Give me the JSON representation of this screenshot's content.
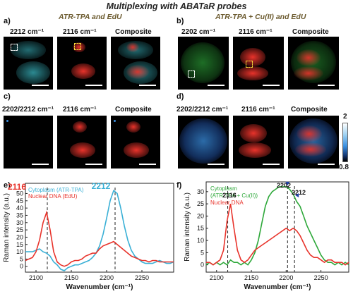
{
  "title": "Multiplexing with ABATaR probes",
  "panels": {
    "a": {
      "letter": "a)",
      "subtitle": "ATR-TPA and EdU",
      "labels": [
        "2212 cm⁻¹",
        "2116 cm⁻¹",
        "Composite"
      ]
    },
    "b": {
      "letter": "b)",
      "subtitle": "ATR-TPA + Cu(II) and EdU",
      "labels": [
        "2202 cm⁻¹",
        "2116 cm⁻¹",
        "Composite"
      ]
    },
    "c": {
      "letter": "c)",
      "labels": [
        "2202/2212 cm⁻¹",
        "2116 cm⁻¹",
        "Composite"
      ]
    },
    "d": {
      "letter": "d)",
      "labels": [
        "2202/2212 cm⁻¹",
        "2116 cm⁻¹",
        "Composite"
      ]
    },
    "e": {
      "letter": "e)"
    },
    "f": {
      "letter": "f)"
    }
  },
  "colorbar": {
    "max": "2",
    "min": "0.8"
  },
  "colors": {
    "cyan": "#3ec4cf",
    "red": "#e8332b",
    "green": "#2ea83a",
    "blue": "#3a8fe0",
    "label_brown": "#6b5a2e"
  },
  "chart_data": [
    {
      "type": "line",
      "panel": "e",
      "xlabel": "Wavenumber (cm⁻¹)",
      "ylabel": "Raman intensity (a.u.)",
      "xlim": [
        2085,
        2295
      ],
      "ylim": [
        -4,
        57
      ],
      "xticks": [
        2100,
        2150,
        2200,
        2250
      ],
      "yticks": [
        0,
        5,
        10,
        15,
        20,
        25,
        30,
        35,
        40,
        45,
        50
      ],
      "legend_location": "top-left",
      "series": [
        {
          "name": "Cytoplasm (ATR-TPA)",
          "color": "#3ab0d6",
          "x": [
            2085,
            2095,
            2100,
            2105,
            2110,
            2115,
            2120,
            2125,
            2130,
            2135,
            2140,
            2145,
            2150,
            2155,
            2160,
            2165,
            2170,
            2175,
            2180,
            2185,
            2190,
            2195,
            2200,
            2205,
            2210,
            2215,
            2220,
            2225,
            2230,
            2235,
            2240,
            2245,
            2250,
            2255,
            2260,
            2265,
            2270,
            2275,
            2280,
            2285,
            2290,
            2295
          ],
          "y": [
            10,
            10,
            11,
            12,
            10,
            9,
            7,
            3,
            1,
            -2,
            -3,
            -1,
            0,
            1,
            1,
            2,
            3,
            4,
            6,
            9,
            14,
            22,
            33,
            45,
            52,
            50,
            40,
            28,
            18,
            11,
            7,
            5,
            3,
            2,
            2,
            2,
            3,
            4,
            3,
            2,
            2,
            3
          ]
        },
        {
          "name": "Nuclear DNA (EdU)",
          "color": "#e8332b",
          "x": [
            2085,
            2095,
            2100,
            2105,
            2110,
            2115,
            2120,
            2125,
            2130,
            2135,
            2140,
            2145,
            2150,
            2155,
            2160,
            2165,
            2170,
            2175,
            2180,
            2185,
            2190,
            2195,
            2200,
            2205,
            2210,
            2215,
            2220,
            2225,
            2230,
            2235,
            2240,
            2245,
            2250,
            2255,
            2260,
            2265,
            2270,
            2275,
            2280,
            2285,
            2290,
            2295
          ],
          "y": [
            4,
            6,
            10,
            18,
            30,
            37,
            25,
            10,
            3,
            1,
            0,
            1,
            3,
            4,
            4,
            5,
            7,
            8,
            9,
            9,
            12,
            14,
            15,
            16,
            17,
            15,
            13,
            11,
            9,
            7,
            6,
            5,
            4,
            4,
            3,
            4,
            4,
            3,
            3,
            3,
            3,
            3
          ]
        }
      ],
      "annotations": [
        {
          "text": "2212",
          "x": 2212
        },
        {
          "text": "2116",
          "x": 2116
        }
      ]
    },
    {
      "type": "line",
      "panel": "f",
      "xlabel": "Wavenumber (cm⁻¹)",
      "ylabel": "Raman intensity (a.u.)",
      "xlim": [
        2085,
        2290
      ],
      "ylim": [
        -3,
        34
      ],
      "xticks": [
        2100,
        2150,
        2200,
        2250
      ],
      "yticks": [
        0,
        5,
        10,
        15,
        20,
        25,
        30
      ],
      "legend_location": "top-left",
      "series": [
        {
          "name": "Cytoplasm (ATR-TPA + Cu(II))",
          "color": "#2ea83a",
          "x": [
            2085,
            2090,
            2095,
            2100,
            2105,
            2110,
            2115,
            2120,
            2125,
            2130,
            2135,
            2140,
            2145,
            2150,
            2155,
            2160,
            2165,
            2170,
            2175,
            2180,
            2185,
            2190,
            2195,
            2200,
            2205,
            2210,
            2215,
            2220,
            2225,
            2230,
            2235,
            2240,
            2245,
            2250,
            2255,
            2260,
            2265,
            2270,
            2275,
            2280,
            2285,
            2290
          ],
          "y": [
            0,
            1,
            0,
            1,
            0,
            1,
            0,
            2,
            1,
            1,
            0,
            1,
            0,
            2,
            5,
            10,
            17,
            24,
            28,
            30,
            31,
            32,
            32,
            32,
            31,
            29,
            26,
            24,
            20,
            16,
            13,
            10,
            7,
            4,
            2,
            1,
            1,
            0,
            1,
            0,
            1,
            0
          ]
        },
        {
          "name": "Nuclear DNA",
          "color": "#e8332b",
          "x": [
            2085,
            2090,
            2095,
            2100,
            2105,
            2110,
            2115,
            2120,
            2125,
            2130,
            2135,
            2140,
            2145,
            2150,
            2155,
            2160,
            2165,
            2170,
            2175,
            2180,
            2185,
            2190,
            2195,
            2200,
            2205,
            2210,
            2215,
            2220,
            2225,
            2230,
            2235,
            2240,
            2245,
            2250,
            2255,
            2260,
            2265,
            2270,
            2275,
            2280,
            2285,
            2290
          ],
          "y": [
            1,
            1,
            0,
            1,
            2,
            6,
            18,
            25,
            15,
            6,
            2,
            1,
            2,
            4,
            6,
            7,
            8,
            9,
            10,
            11,
            12,
            13,
            14,
            15,
            14,
            15,
            14,
            12,
            9,
            6,
            4,
            3,
            3,
            2,
            1,
            2,
            2,
            1,
            1,
            1,
            0,
            1
          ]
        }
      ],
      "annotations": [
        {
          "text": "2202",
          "x": 2202
        },
        {
          "text": "2212",
          "x": 2212
        },
        {
          "text": "2116",
          "x": 2116
        }
      ]
    }
  ]
}
